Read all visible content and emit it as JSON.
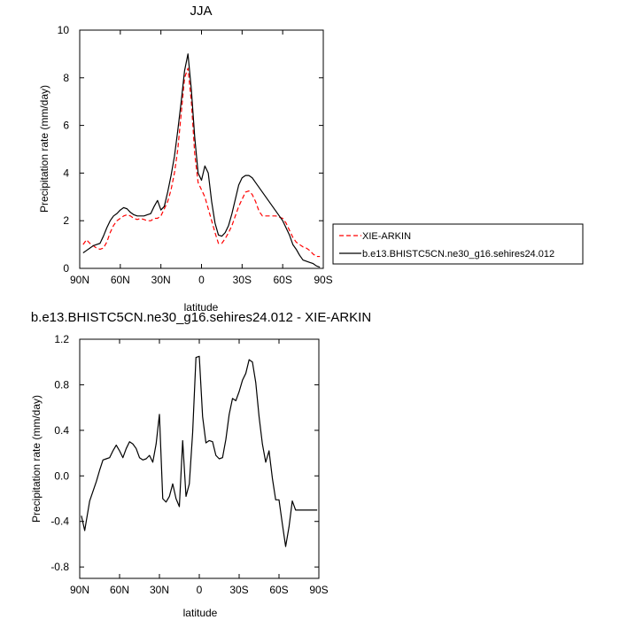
{
  "chart_data": [
    {
      "type": "line",
      "title": "JJA",
      "xlabel": "latitude",
      "ylabel": "Precipitation rate (mm/day)",
      "xlim": [
        90,
        -90
      ],
      "ylim": [
        0,
        10
      ],
      "x_tick_values": [
        90,
        60,
        30,
        0,
        -30,
        -60,
        -90
      ],
      "x_tick_labels": [
        "90N",
        "60N",
        "30N",
        "0",
        "30S",
        "60S",
        "90S"
      ],
      "y_tick_values": [
        0,
        2,
        4,
        6,
        8,
        10
      ],
      "y_tick_labels": [
        "0",
        "2",
        "4",
        "6",
        "8",
        "10"
      ],
      "grid": false,
      "legend_position": "right",
      "series": [
        {
          "name": "XIE-ARKIN",
          "color": "#ff0000",
          "dash": "dashed",
          "x": [
            87.5,
            85,
            82.5,
            80,
            77.5,
            75,
            72.5,
            70,
            67.5,
            65,
            62.5,
            60,
            57.5,
            55,
            52.5,
            50,
            47.5,
            45,
            42.5,
            40,
            37.5,
            35,
            32.5,
            30,
            27.5,
            25,
            22.5,
            20,
            17.5,
            15,
            12.5,
            10,
            7.5,
            5,
            2.5,
            0,
            -2.5,
            -5,
            -7.5,
            -10,
            -12.5,
            -15,
            -17.5,
            -20,
            -22.5,
            -25,
            -27.5,
            -30,
            -32.5,
            -35,
            -37.5,
            -40,
            -42.5,
            -45,
            -47.5,
            -50,
            -52.5,
            -55,
            -57.5,
            -60,
            -62.5,
            -65,
            -67.5,
            -70,
            -72.5,
            -75,
            -77.5,
            -80,
            -82.5,
            -85,
            -87.5
          ],
          "y": [
            1.0,
            1.2,
            1.05,
            0.95,
            0.85,
            0.8,
            0.85,
            1.1,
            1.5,
            1.8,
            2.0,
            2.1,
            2.2,
            2.25,
            2.2,
            2.1,
            2.05,
            2.1,
            2.05,
            2.0,
            2.0,
            2.1,
            2.1,
            2.2,
            2.5,
            2.8,
            3.3,
            4.0,
            5.0,
            6.5,
            8.0,
            8.4,
            7.0,
            4.8,
            3.6,
            3.3,
            3.0,
            2.5,
            2.0,
            1.5,
            1.05,
            1.05,
            1.25,
            1.5,
            1.8,
            2.2,
            2.6,
            2.9,
            3.2,
            3.25,
            3.1,
            2.8,
            2.4,
            2.2,
            2.2,
            2.2,
            2.2,
            2.2,
            2.15,
            2.1,
            1.9,
            1.6,
            1.3,
            1.1,
            1.0,
            0.9,
            0.85,
            0.75,
            0.6,
            0.5,
            0.5
          ]
        },
        {
          "name": "b.e13.BHISTC5CN.ne30_g16.sehires24.012",
          "color": "#000000",
          "dash": "solid",
          "x": [
            87.5,
            85,
            82.5,
            80,
            77.5,
            75,
            72.5,
            70,
            67.5,
            65,
            62.5,
            60,
            57.5,
            55,
            52.5,
            50,
            47.5,
            45,
            42.5,
            40,
            37.5,
            35,
            32.5,
            30,
            27.5,
            25,
            22.5,
            20,
            17.5,
            15,
            12.5,
            10,
            7.5,
            5,
            2.5,
            0,
            -2.5,
            -5,
            -7.5,
            -10,
            -12.5,
            -15,
            -17.5,
            -20,
            -22.5,
            -25,
            -27.5,
            -30,
            -32.5,
            -35,
            -37.5,
            -40,
            -42.5,
            -45,
            -47.5,
            -50,
            -52.5,
            -55,
            -57.5,
            -60,
            -62.5,
            -65,
            -67.5,
            -70,
            -72.5,
            -75,
            -77.5,
            -80,
            -82.5,
            -85,
            -87.5
          ],
          "y": [
            0.65,
            0.75,
            0.85,
            0.95,
            1.0,
            1.05,
            1.35,
            1.7,
            2.0,
            2.2,
            2.3,
            2.45,
            2.55,
            2.5,
            2.35,
            2.25,
            2.2,
            2.2,
            2.2,
            2.25,
            2.3,
            2.6,
            2.85,
            2.45,
            2.6,
            3.2,
            3.9,
            4.7,
            5.8,
            7.0,
            8.3,
            9.0,
            7.5,
            5.5,
            4.0,
            3.7,
            4.3,
            4.0,
            2.8,
            1.9,
            1.4,
            1.35,
            1.5,
            1.8,
            2.3,
            2.9,
            3.5,
            3.8,
            3.9,
            3.9,
            3.8,
            3.6,
            3.4,
            3.2,
            3.0,
            2.8,
            2.6,
            2.4,
            2.2,
            2.0,
            1.7,
            1.4,
            1.0,
            0.8,
            0.55,
            0.35,
            0.3,
            0.25,
            0.2,
            0.1,
            0.05
          ]
        }
      ]
    },
    {
      "type": "line",
      "title": "b.e13.BHISTC5CN.ne30_g16.sehires24.012 - XIE-ARKIN",
      "xlabel": "latitude",
      "ylabel": "Precipitation rate (mm/day)",
      "xlim": [
        90,
        -90
      ],
      "ylim": [
        -0.9,
        1.2
      ],
      "x_tick_values": [
        90,
        60,
        30,
        0,
        -30,
        -60,
        -90
      ],
      "x_tick_labels": [
        "90N",
        "60N",
        "30N",
        "0",
        "30S",
        "60S",
        "90S"
      ],
      "y_tick_values": [
        -0.8,
        -0.4,
        0.0,
        0.4,
        0.8,
        1.2
      ],
      "y_tick_labels": [
        "-0.8",
        "-0.4",
        "0.0",
        "0.4",
        "0.8",
        "1.2"
      ],
      "grid": false,
      "series": [
        {
          "color": "#000000",
          "dash": "solid",
          "x": [
            88.75,
            86.25,
            82.5,
            77.5,
            75,
            72.5,
            70,
            67.5,
            65,
            62.5,
            60,
            57.5,
            55,
            52.5,
            50,
            47.5,
            45,
            42.5,
            40,
            37.5,
            35,
            32.5,
            30,
            27.5,
            25,
            22.5,
            20,
            17.5,
            15,
            12.5,
            10,
            7.5,
            5,
            2.5,
            0,
            -2.5,
            -5,
            -7.5,
            -10,
            -12.5,
            -15,
            -17.5,
            -20,
            -22.5,
            -25,
            -27.5,
            -30,
            -32.5,
            -35,
            -37.5,
            -40,
            -42.5,
            -45,
            -47.5,
            -50,
            -52.5,
            -55,
            -57.5,
            -60,
            -62.5,
            -65,
            -67.5,
            -70,
            -72.5,
            -75,
            -77.5,
            -80,
            -82.5,
            -85,
            -87.5,
            -88.75
          ],
          "y": [
            -0.35,
            -0.48,
            -0.22,
            -0.05,
            0.05,
            0.14,
            0.15,
            0.16,
            0.22,
            0.27,
            0.22,
            0.16,
            0.24,
            0.3,
            0.28,
            0.24,
            0.16,
            0.14,
            0.15,
            0.18,
            0.12,
            0.28,
            0.54,
            -0.2,
            -0.23,
            -0.18,
            -0.07,
            -0.2,
            -0.27,
            0.31,
            -0.18,
            -0.07,
            0.38,
            1.04,
            1.05,
            0.52,
            0.29,
            0.31,
            0.3,
            0.18,
            0.15,
            0.16,
            0.32,
            0.54,
            0.68,
            0.66,
            0.74,
            0.84,
            0.9,
            1.02,
            1.0,
            0.82,
            0.52,
            0.28,
            0.12,
            0.22,
            -0.02,
            -0.21,
            -0.21,
            -0.42,
            -0.62,
            -0.45,
            -0.22,
            -0.3,
            -0.3,
            -0.3,
            -0.3,
            -0.3,
            -0.3,
            -0.3,
            -0.3
          ]
        }
      ]
    }
  ]
}
